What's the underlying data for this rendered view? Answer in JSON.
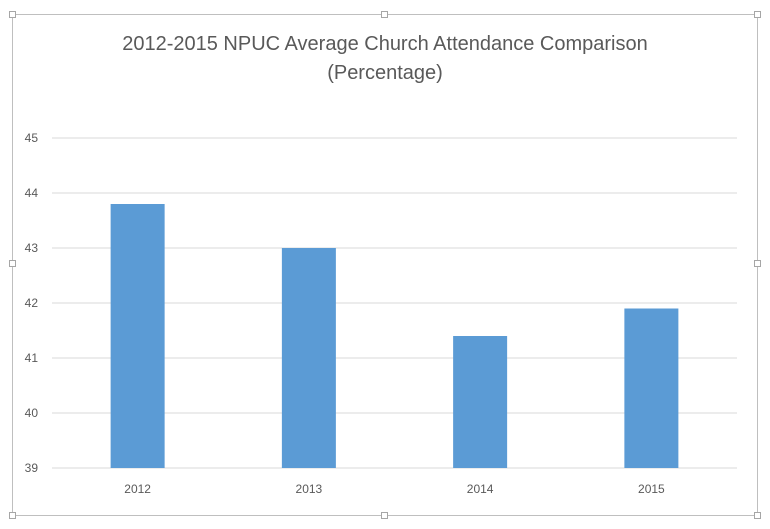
{
  "chart_data": {
    "type": "bar",
    "title": "2012-2015 NPUC Average Church Attendance Comparison",
    "subtitle": "(Percentage)",
    "categories": [
      "2012",
      "2013",
      "2014",
      "2015"
    ],
    "values": [
      43.8,
      43.0,
      41.4,
      41.9
    ],
    "xlabel": "",
    "ylabel": "",
    "ylim": [
      39,
      45
    ],
    "yticks": [
      39,
      40,
      41,
      42,
      43,
      44,
      45
    ],
    "grid": true,
    "legend": "none",
    "bar_color": "#5b9bd5",
    "grid_color": "#d9d9d9"
  }
}
